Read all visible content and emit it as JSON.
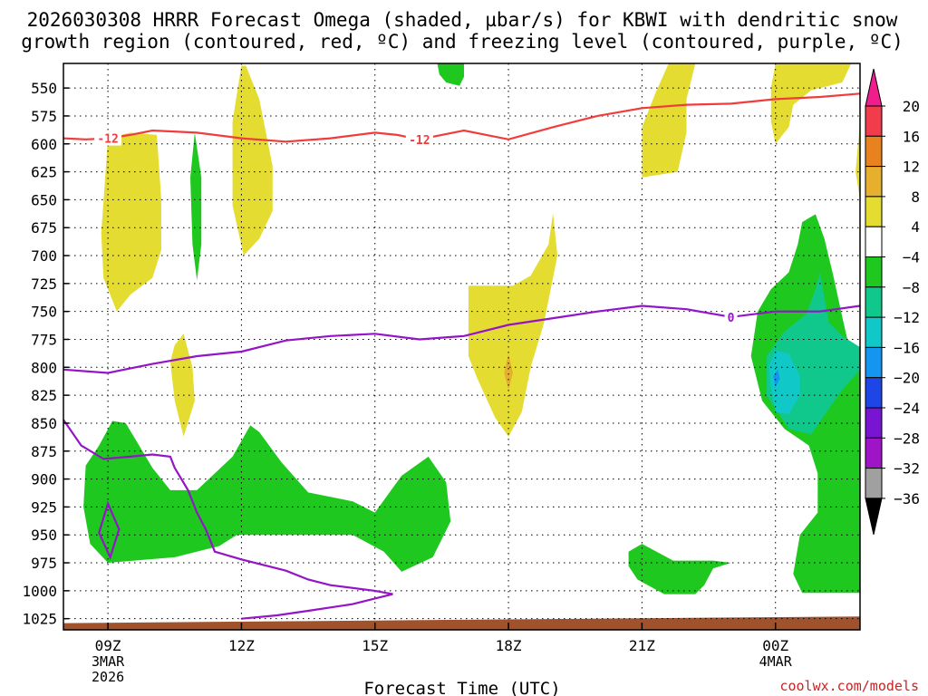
{
  "chart_data": {
    "type": "cross-section",
    "title_line1": "2026030308 HRRR Forecast Omega (shaded, µbar/s) for KBWI with dendritic snow",
    "title_line2": "growth region (contoured, red, ºC) and freezing level (contoured, purple, ºC)",
    "xlabel": "Forecast Time (UTC)",
    "credit": "coolwx.com/models",
    "xlim": [
      8,
      25.9
    ],
    "ylim": [
      1035,
      528
    ],
    "y_ticks": [
      550,
      575,
      600,
      625,
      650,
      675,
      700,
      725,
      750,
      775,
      800,
      825,
      850,
      875,
      900,
      925,
      950,
      975,
      1000,
      1025
    ],
    "y_tick_labels": [
      "550",
      "575",
      "600",
      "625",
      "650",
      "675",
      "700",
      "725",
      "750",
      "775",
      "800",
      "825",
      "850",
      "875",
      "900",
      "925",
      "950",
      "975",
      "1000",
      "1025"
    ],
    "x_ticks": [
      {
        "t": 9,
        "label": "09Z",
        "sub1": "3MAR",
        "sub2": "2026"
      },
      {
        "t": 12,
        "label": "12Z",
        "sub1": "",
        "sub2": ""
      },
      {
        "t": 15,
        "label": "15Z",
        "sub1": "",
        "sub2": ""
      },
      {
        "t": 18,
        "label": "18Z",
        "sub1": "",
        "sub2": ""
      },
      {
        "t": 21,
        "label": "21Z",
        "sub1": "",
        "sub2": ""
      },
      {
        "t": 24,
        "label": "00Z",
        "sub1": "4MAR",
        "sub2": ""
      }
    ],
    "colorbar": {
      "labels": [
        "20",
        "16",
        "12",
        "8",
        "4",
        "−4",
        "−8",
        "−12",
        "−16",
        "−20",
        "−24",
        "−28",
        "−32",
        "−36"
      ],
      "colors": [
        "#f03c4b",
        "#e8821e",
        "#e6b02e",
        "#e5dc32",
        "#ffffff",
        "#1ec81e",
        "#10c88c",
        "#10c8c8",
        "#1496f0",
        "#1e46e6",
        "#7814d2",
        "#a014c8",
        "#a0a0a0"
      ],
      "top_arrow": "#f01e8c",
      "bottom_arrow": "#000000"
    },
    "omega_regions": [
      {
        "level": "4 to 8",
        "color": "#e5dc32",
        "points": [
          [
            9.0,
            595
          ],
          [
            9.5,
            590
          ],
          [
            10.1,
            592
          ],
          [
            10.2,
            650
          ],
          [
            10.2,
            695
          ],
          [
            10.0,
            720
          ],
          [
            9.5,
            735
          ],
          [
            9.2,
            750
          ],
          [
            8.9,
            720
          ],
          [
            8.85,
            680
          ]
        ]
      },
      {
        "level": "4 to 8",
        "color": "#e5dc32",
        "points": [
          [
            10.7,
            770
          ],
          [
            10.9,
            800
          ],
          [
            10.95,
            830
          ],
          [
            10.7,
            862
          ],
          [
            10.5,
            830
          ],
          [
            10.4,
            795
          ],
          [
            10.5,
            780
          ]
        ]
      },
      {
        "level": "4 to 8",
        "color": "#e5dc32",
        "points": [
          [
            12.0,
            530
          ],
          [
            12.1,
            530
          ],
          [
            12.4,
            560
          ],
          [
            12.7,
            620
          ],
          [
            12.7,
            660
          ],
          [
            12.4,
            685
          ],
          [
            12.05,
            700
          ],
          [
            11.8,
            655
          ],
          [
            11.8,
            580
          ]
        ]
      },
      {
        "level": "4 to 8",
        "color": "#e5dc32",
        "points": [
          [
            17.1,
            727
          ],
          [
            18.1,
            727
          ],
          [
            18.5,
            718
          ],
          [
            18.9,
            690
          ],
          [
            19.0,
            662
          ],
          [
            19.1,
            700
          ],
          [
            18.8,
            760
          ],
          [
            18.5,
            800
          ],
          [
            18.3,
            840
          ],
          [
            18.0,
            862
          ],
          [
            17.7,
            845
          ],
          [
            17.3,
            810
          ],
          [
            17.1,
            790
          ]
        ]
      },
      {
        "level": "8 to 12",
        "color": "#e6b02e",
        "points": [
          [
            18.0,
            788
          ],
          [
            18.1,
            805
          ],
          [
            18.0,
            820
          ],
          [
            17.9,
            805
          ]
        ]
      },
      {
        "level": "4 to 8",
        "color": "#e5dc32",
        "points": [
          [
            21.6,
            528
          ],
          [
            22.2,
            528
          ],
          [
            22.0,
            560
          ],
          [
            22.0,
            590
          ],
          [
            21.8,
            625
          ],
          [
            21.0,
            630
          ],
          [
            21.0,
            585
          ],
          [
            21.3,
            555
          ]
        ]
      },
      {
        "level": "4 to 8",
        "color": "#e5dc32",
        "points": [
          [
            24.0,
            528
          ],
          [
            25.7,
            528
          ],
          [
            25.5,
            545
          ],
          [
            24.8,
            552
          ],
          [
            24.4,
            565
          ],
          [
            24.3,
            585
          ],
          [
            24.0,
            600
          ],
          [
            23.9,
            580
          ],
          [
            23.9,
            550
          ]
        ]
      },
      {
        "level": "4 to 8",
        "color": "#e5dc32",
        "points": [
          [
            25.9,
            580
          ],
          [
            25.9,
            650
          ],
          [
            25.8,
            625
          ]
        ]
      },
      {
        "level": "-4 to -8",
        "color": "#1ec81e",
        "points": [
          [
            16.4,
            528
          ],
          [
            17.0,
            528
          ],
          [
            17.0,
            540
          ],
          [
            16.9,
            548
          ],
          [
            16.6,
            545
          ],
          [
            16.45,
            538
          ]
        ]
      },
      {
        "level": "-4 to -8",
        "color": "#1ec81e",
        "points": [
          [
            10.95,
            590
          ],
          [
            11.1,
            630
          ],
          [
            11.1,
            690
          ],
          [
            11.0,
            722
          ],
          [
            10.9,
            690
          ],
          [
            10.85,
            630
          ]
        ]
      },
      {
        "level": "-4 to -8",
        "color": "#1ec81e",
        "points": [
          [
            9.4,
            850
          ],
          [
            9.7,
            870
          ],
          [
            10.0,
            890
          ],
          [
            10.4,
            910
          ],
          [
            11.0,
            910
          ],
          [
            11.8,
            880
          ],
          [
            12.2,
            852
          ],
          [
            12.4,
            858
          ],
          [
            12.9,
            885
          ],
          [
            13.5,
            912
          ],
          [
            14.5,
            920
          ],
          [
            15.0,
            930
          ],
          [
            15.6,
            897
          ],
          [
            16.2,
            880
          ],
          [
            16.6,
            903
          ],
          [
            16.7,
            938
          ],
          [
            16.3,
            970
          ],
          [
            15.6,
            983
          ],
          [
            15.2,
            965
          ],
          [
            14.5,
            950
          ],
          [
            11.9,
            950
          ],
          [
            11.5,
            960
          ],
          [
            10.5,
            970
          ],
          [
            9.0,
            975
          ],
          [
            8.6,
            958
          ],
          [
            8.45,
            925
          ],
          [
            8.5,
            888
          ],
          [
            8.8,
            870
          ],
          [
            9.1,
            848
          ]
        ]
      },
      {
        "level": "-4 to -8",
        "color": "#1ec81e",
        "points": [
          [
            24.9,
            663
          ],
          [
            25.1,
            685
          ],
          [
            25.3,
            718
          ],
          [
            25.5,
            755
          ],
          [
            25.7,
            790
          ],
          [
            25.9,
            800
          ],
          [
            25.9,
            1002
          ],
          [
            24.6,
            1002
          ],
          [
            24.4,
            985
          ],
          [
            24.55,
            950
          ],
          [
            24.95,
            930
          ],
          [
            24.95,
            895
          ],
          [
            24.75,
            870
          ],
          [
            24.2,
            855
          ],
          [
            23.7,
            830
          ],
          [
            23.45,
            790
          ],
          [
            23.6,
            750
          ],
          [
            23.9,
            730
          ],
          [
            24.3,
            715
          ],
          [
            24.5,
            690
          ],
          [
            24.6,
            670
          ]
        ]
      },
      {
        "level": "-4 to -8",
        "color": "#1ec81e",
        "points": [
          [
            20.7,
            965
          ],
          [
            21.0,
            958
          ],
          [
            21.7,
            973
          ],
          [
            22.6,
            973
          ],
          [
            23.0,
            975
          ],
          [
            22.6,
            980
          ],
          [
            22.4,
            995
          ],
          [
            22.2,
            1003
          ],
          [
            21.5,
            1003
          ],
          [
            20.9,
            990
          ],
          [
            20.7,
            978
          ]
        ]
      },
      {
        "level": "-8 to -12",
        "color": "#10c88c",
        "points": [
          [
            25.0,
            715
          ],
          [
            25.2,
            760
          ],
          [
            25.5,
            772
          ],
          [
            25.9,
            782
          ],
          [
            25.9,
            802
          ],
          [
            25.5,
            820
          ],
          [
            25.1,
            843
          ],
          [
            24.8,
            860
          ],
          [
            24.3,
            855
          ],
          [
            23.8,
            825
          ],
          [
            23.8,
            790
          ],
          [
            24.2,
            768
          ],
          [
            24.7,
            752
          ],
          [
            24.9,
            730
          ]
        ]
      },
      {
        "level": "-12 to -16",
        "color": "#10c8c8",
        "points": [
          [
            24.0,
            785
          ],
          [
            24.3,
            788
          ],
          [
            24.55,
            808
          ],
          [
            24.55,
            825
          ],
          [
            24.3,
            842
          ],
          [
            24.0,
            840
          ],
          [
            23.9,
            818
          ],
          [
            23.85,
            800
          ]
        ]
      },
      {
        "level": "-16 to -20",
        "color": "#1496f0",
        "points": [
          [
            23.95,
            808
          ],
          [
            24.05,
            802
          ],
          [
            24.1,
            810
          ],
          [
            24.0,
            818
          ]
        ]
      }
    ],
    "dgz_line": {
      "label": "-12",
      "label_times": [
        8.1,
        9.0,
        16.0
      ],
      "points": [
        [
          8.0,
          595
        ],
        [
          8.5,
          596
        ],
        [
          9.0,
          595
        ],
        [
          9.5,
          592
        ],
        [
          10.0,
          588
        ],
        [
          11.0,
          590
        ],
        [
          12.0,
          595
        ],
        [
          13.0,
          598
        ],
        [
          14.0,
          595
        ],
        [
          15.0,
          590
        ],
        [
          15.5,
          592
        ],
        [
          16.0,
          596
        ],
        [
          17.0,
          588
        ],
        [
          18.0,
          596
        ],
        [
          19.0,
          585
        ],
        [
          20.0,
          575
        ],
        [
          21.0,
          568
        ],
        [
          22.0,
          565
        ],
        [
          23.0,
          564
        ],
        [
          24.0,
          560
        ],
        [
          25.0,
          558
        ],
        [
          25.9,
          555
        ]
      ]
    },
    "freezing_line": {
      "label": "0",
      "label_times": [
        23.0
      ],
      "points": [
        [
          8.0,
          802
        ],
        [
          9.0,
          805
        ],
        [
          10.0,
          797
        ],
        [
          11.0,
          790
        ],
        [
          12.0,
          786
        ],
        [
          13.0,
          776
        ],
        [
          14.0,
          772
        ],
        [
          15.0,
          770
        ],
        [
          16.0,
          775
        ],
        [
          17.0,
          772
        ],
        [
          18.0,
          762
        ],
        [
          19.0,
          756
        ],
        [
          20.0,
          750
        ],
        [
          21.0,
          745
        ],
        [
          22.0,
          748
        ],
        [
          23.0,
          755
        ],
        [
          24.0,
          750
        ],
        [
          25.0,
          750
        ],
        [
          25.9,
          745
        ]
      ]
    },
    "freezing_loop": {
      "points": [
        [
          8.0,
          847
        ],
        [
          8.4,
          870
        ],
        [
          8.9,
          882
        ],
        [
          9.5,
          880
        ],
        [
          10.0,
          878
        ],
        [
          10.4,
          880
        ],
        [
          10.5,
          890
        ],
        [
          10.8,
          910
        ],
        [
          11.0,
          930
        ],
        [
          11.2,
          945
        ],
        [
          11.4,
          965
        ],
        [
          12.0,
          972
        ],
        [
          13.0,
          982
        ],
        [
          13.5,
          990
        ],
        [
          14.0,
          995
        ],
        [
          15.0,
          1000
        ],
        [
          15.4,
          1003
        ],
        [
          14.5,
          1012
        ],
        [
          13.5,
          1018
        ],
        [
          12.8,
          1022
        ],
        [
          12.0,
          1025
        ]
      ]
    },
    "freezing_small_loop": {
      "points": [
        [
          9.0,
          922
        ],
        [
          9.25,
          945
        ],
        [
          9.05,
          970
        ],
        [
          8.8,
          948
        ]
      ]
    },
    "terrain": {
      "color": "#a0522d",
      "from_time": 8.0,
      "to_time": 25.9,
      "base": 1035,
      "top_left": 1029,
      "top_right": 1023
    }
  }
}
